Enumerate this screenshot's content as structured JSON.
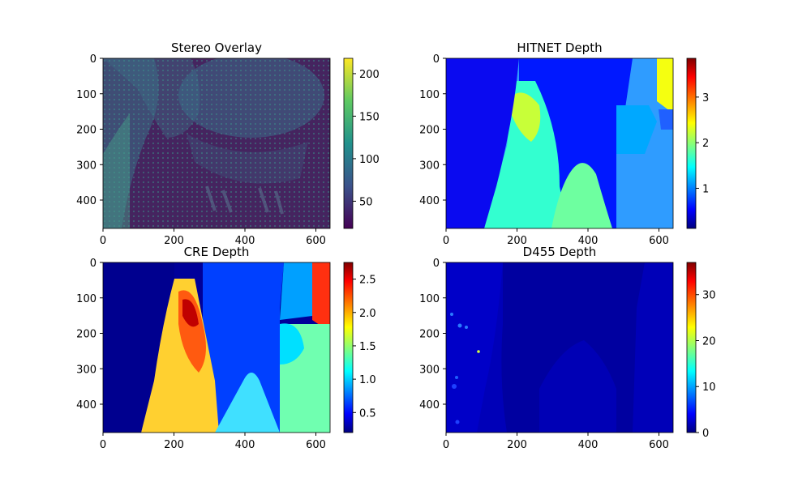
{
  "chart_data": [
    {
      "type": "heatmap",
      "title": "Stereo Overlay",
      "x_ticks": [
        0,
        200,
        400,
        600
      ],
      "y_ticks": [
        0,
        100,
        200,
        300,
        400
      ],
      "xlim": [
        0,
        640
      ],
      "ylim": [
        480,
        0
      ],
      "colormap": "viridis",
      "colorbar": {
        "ticks": [
          50,
          100,
          150,
          200
        ],
        "min": 18,
        "max": 218
      }
    },
    {
      "type": "heatmap",
      "title": "HITNET Depth",
      "x_ticks": [
        0,
        200,
        400,
        600
      ],
      "y_ticks": [
        0,
        100,
        200,
        300,
        400
      ],
      "xlim": [
        0,
        640
      ],
      "ylim": [
        480,
        0
      ],
      "colormap": "jet",
      "colorbar": {
        "ticks": [
          1,
          2,
          3
        ],
        "min": 0.12,
        "max": 3.85
      }
    },
    {
      "type": "heatmap",
      "title": "CRE Depth",
      "x_ticks": [
        0,
        200,
        400,
        600
      ],
      "y_ticks": [
        0,
        100,
        200,
        300,
        400
      ],
      "xlim": [
        0,
        640
      ],
      "ylim": [
        480,
        0
      ],
      "colormap": "jet",
      "colorbar": {
        "ticks": [
          0.5,
          1.0,
          1.5,
          2.0,
          2.5
        ],
        "min": 0.2,
        "max": 2.75
      }
    },
    {
      "type": "heatmap",
      "title": "D455 Depth",
      "x_ticks": [
        0,
        200,
        400,
        600
      ],
      "y_ticks": [
        0,
        100,
        200,
        300,
        400
      ],
      "xlim": [
        0,
        640
      ],
      "ylim": [
        480,
        0
      ],
      "colormap": "jet",
      "colorbar": {
        "ticks": [
          0,
          10,
          20,
          30
        ],
        "min": 0,
        "max": 37
      }
    }
  ]
}
